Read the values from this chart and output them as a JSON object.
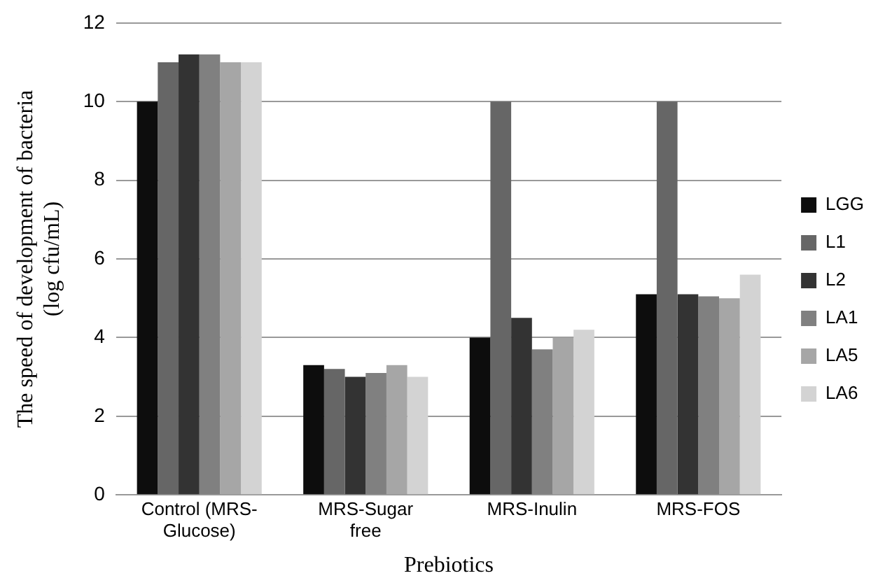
{
  "chart_data": {
    "type": "bar",
    "xlabel": "Prebiotics",
    "ylabel": "The speed of development of bacteria (log cfu/mL)",
    "categories": [
      "Control (MRS-Glucose)",
      "MRS-Sugar free",
      "MRS-Inulin",
      "MRS-FOS"
    ],
    "series": [
      {
        "name": "LGG",
        "color": "#0d0d0d",
        "values": [
          10,
          3.3,
          4.0,
          5.1
        ]
      },
      {
        "name": "L1",
        "color": "#666666",
        "values": [
          11.0,
          3.2,
          10,
          10
        ]
      },
      {
        "name": "L2",
        "color": "#333333",
        "values": [
          11.2,
          3.0,
          4.5,
          5.1
        ]
      },
      {
        "name": "LA1",
        "color": "#808080",
        "values": [
          11.2,
          3.1,
          3.7,
          5.05
        ]
      },
      {
        "name": "LA5",
        "color": "#a6a6a6",
        "values": [
          11.0,
          3.3,
          4.0,
          5.0
        ]
      },
      {
        "name": "LA6",
        "color": "#d3d3d3",
        "values": [
          11.0,
          3.0,
          4.2,
          5.6
        ]
      }
    ],
    "ylim": [
      0,
      12
    ],
    "yticks": [
      0,
      2,
      4,
      6,
      8,
      10,
      12
    ],
    "grid": "y",
    "legend": "right"
  }
}
